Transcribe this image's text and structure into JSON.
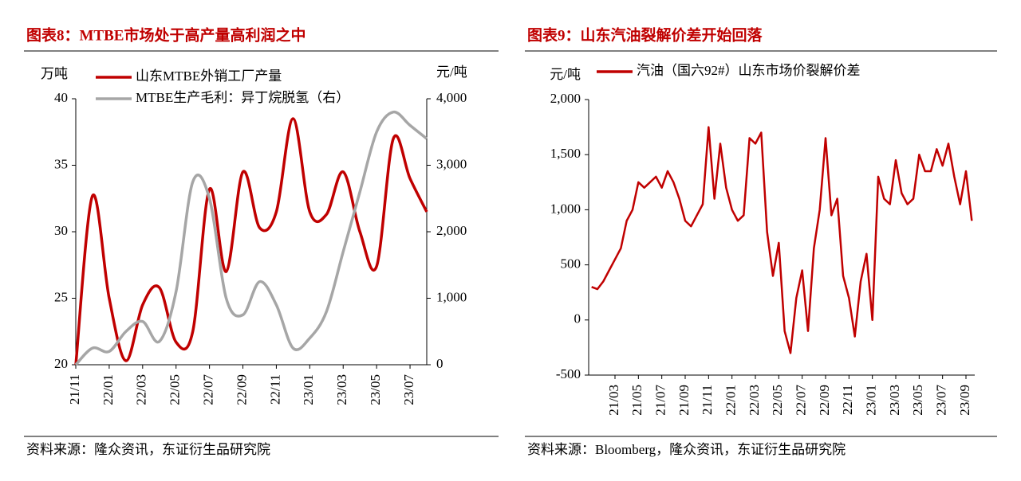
{
  "chart_data": [
    {
      "type": "line",
      "title": "图表8：MTBE市场处于高产量高利润之中",
      "y_unit": "万吨",
      "y2_unit": "元/吨",
      "categories": [
        "21/11",
        null,
        "22/01",
        null,
        "22/03",
        null,
        "22/05",
        null,
        "22/07",
        null,
        "22/09",
        null,
        "22/11",
        null,
        "23/01",
        null,
        "23/03",
        null,
        "23/05",
        null,
        "23/07",
        null
      ],
      "series": [
        {
          "name": "山东MTBE外销工厂产量",
          "color": "#c00000",
          "values": [
            20,
            32.7,
            25,
            20.3,
            24.5,
            25.8,
            21.7,
            22.5,
            33.2,
            27,
            34.5,
            30.3,
            31.5,
            38.5,
            31.5,
            31.3,
            34.5,
            30,
            27.4,
            37,
            34,
            31.5
          ]
        },
        {
          "name": "MTBE生产毛利：异丁烷脱氢（右）",
          "color": "#a6a6a6",
          "axis": "y2",
          "values": [
            0,
            250,
            200,
            500,
            650,
            350,
            1100,
            2750,
            2500,
            1000,
            750,
            1250,
            900,
            250,
            400,
            800,
            1700,
            2600,
            3500,
            3800,
            3600,
            3400
          ]
        }
      ],
      "ylim": [
        20,
        40
      ],
      "yticks": [
        20,
        25,
        30,
        35,
        40
      ],
      "y2lim": [
        0,
        4000
      ],
      "y2ticks": [
        0,
        {
          "value": 1000,
          "label": "1,000"
        },
        {
          "value": 2000,
          "label": "2,000"
        },
        {
          "value": 3000,
          "label": "3,000"
        },
        {
          "value": 4000,
          "label": "4,000"
        }
      ],
      "source": "资料来源：隆众资讯，东证衍生品研究院"
    },
    {
      "type": "line",
      "title": "图表9：山东汽油裂解价差开始回落",
      "y_unit": "元/吨",
      "categories": [
        null,
        null,
        null,
        null,
        "21/03",
        null,
        null,
        null,
        "21/05",
        null,
        null,
        null,
        "21/07",
        null,
        null,
        null,
        "21/09",
        null,
        null,
        null,
        "21/11",
        null,
        null,
        null,
        "22/01",
        null,
        null,
        null,
        "22/03",
        null,
        null,
        null,
        "22/05",
        null,
        null,
        null,
        "22/07",
        null,
        null,
        null,
        "22/09",
        null,
        null,
        null,
        "22/11",
        null,
        null,
        null,
        "23/01",
        null,
        null,
        null,
        "23/03",
        null,
        null,
        null,
        "23/05",
        null,
        null,
        null,
        "23/07",
        null,
        null,
        null,
        "23/09",
        null
      ],
      "series": [
        {
          "name": "汽油（国六92#）山东市场价裂解价差",
          "color": "#c00000",
          "values": [
            300,
            280,
            350,
            450,
            550,
            650,
            900,
            1000,
            1250,
            1200,
            1250,
            1300,
            1200,
            1350,
            1250,
            1100,
            900,
            850,
            950,
            1050,
            1750,
            1100,
            1600,
            1200,
            1000,
            900,
            950,
            1650,
            1600,
            1700,
            800,
            400,
            700,
            -100,
            -300,
            200,
            450,
            -100,
            650,
            1000,
            1650,
            950,
            1100,
            400,
            200,
            -150,
            350,
            600,
            0,
            1300,
            1100,
            1050,
            1450,
            1150,
            1050,
            1100,
            1500,
            1350,
            1350,
            1550,
            1400,
            1600,
            1300,
            1050,
            1350,
            900
          ]
        }
      ],
      "ylim": [
        -500,
        2000
      ],
      "yticks": [
        -500,
        0,
        500,
        {
          "value": 1000,
          "label": "1,000"
        },
        {
          "value": 1500,
          "label": "1,500"
        },
        {
          "value": 2000,
          "label": "2,000"
        }
      ],
      "source": "资料来源：Bloomberg，隆众资讯，东证衍生品研究院"
    }
  ]
}
